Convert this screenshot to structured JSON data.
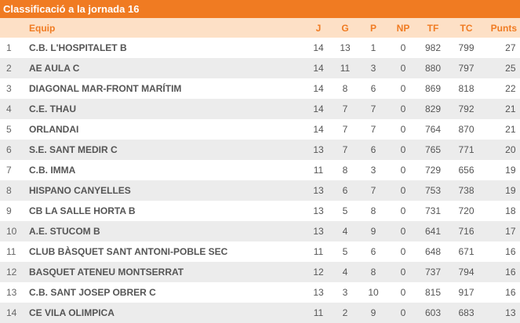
{
  "title": "Classificació a la jornada 16",
  "columns": {
    "team": "Equip",
    "j": "J",
    "g": "G",
    "p": "P",
    "np": "NP",
    "tf": "TF",
    "tc": "TC",
    "pts": "Punts"
  },
  "rows": [
    {
      "pos": "1",
      "team": "C.B. L'HOSPITALET B",
      "j": "14",
      "g": "13",
      "p": "1",
      "np": "0",
      "tf": "982",
      "tc": "799",
      "pts": "27"
    },
    {
      "pos": "2",
      "team": "AE AULA C",
      "j": "14",
      "g": "11",
      "p": "3",
      "np": "0",
      "tf": "880",
      "tc": "797",
      "pts": "25"
    },
    {
      "pos": "3",
      "team": "DIAGONAL MAR-FRONT MARÍTIM",
      "j": "14",
      "g": "8",
      "p": "6",
      "np": "0",
      "tf": "869",
      "tc": "818",
      "pts": "22"
    },
    {
      "pos": "4",
      "team": "C.E. THAU",
      "j": "14",
      "g": "7",
      "p": "7",
      "np": "0",
      "tf": "829",
      "tc": "792",
      "pts": "21"
    },
    {
      "pos": "5",
      "team": "ORLANDAI",
      "j": "14",
      "g": "7",
      "p": "7",
      "np": "0",
      "tf": "764",
      "tc": "870",
      "pts": "21"
    },
    {
      "pos": "6",
      "team": "S.E. SANT MEDIR C",
      "j": "13",
      "g": "7",
      "p": "6",
      "np": "0",
      "tf": "765",
      "tc": "771",
      "pts": "20"
    },
    {
      "pos": "7",
      "team": "C.B. IMMA",
      "j": "11",
      "g": "8",
      "p": "3",
      "np": "0",
      "tf": "729",
      "tc": "656",
      "pts": "19"
    },
    {
      "pos": "8",
      "team": "HISPANO CANYELLES",
      "j": "13",
      "g": "6",
      "p": "7",
      "np": "0",
      "tf": "753",
      "tc": "738",
      "pts": "19"
    },
    {
      "pos": "9",
      "team": "CB LA SALLE HORTA B",
      "j": "13",
      "g": "5",
      "p": "8",
      "np": "0",
      "tf": "731",
      "tc": "720",
      "pts": "18"
    },
    {
      "pos": "10",
      "team": "A.E. STUCOM B",
      "j": "13",
      "g": "4",
      "p": "9",
      "np": "0",
      "tf": "641",
      "tc": "716",
      "pts": "17"
    },
    {
      "pos": "11",
      "team": "CLUB BÀSQUET SANT ANTONI-POBLE SEC",
      "j": "11",
      "g": "5",
      "p": "6",
      "np": "0",
      "tf": "648",
      "tc": "671",
      "pts": "16"
    },
    {
      "pos": "12",
      "team": "BASQUET ATENEU MONTSERRAT",
      "j": "12",
      "g": "4",
      "p": "8",
      "np": "0",
      "tf": "737",
      "tc": "794",
      "pts": "16"
    },
    {
      "pos": "13",
      "team": "C.B. SANT JOSEP OBRER C",
      "j": "13",
      "g": "3",
      "p": "10",
      "np": "0",
      "tf": "815",
      "tc": "917",
      "pts": "16"
    },
    {
      "pos": "14",
      "team": "CE VILA OLIMPICA",
      "j": "11",
      "g": "2",
      "p": "9",
      "np": "0",
      "tf": "603",
      "tc": "683",
      "pts": "13"
    }
  ],
  "colors": {
    "accent": "#f07b22",
    "header_bg": "#fde0c6",
    "row_alt": "#ececec",
    "text": "#555555"
  }
}
